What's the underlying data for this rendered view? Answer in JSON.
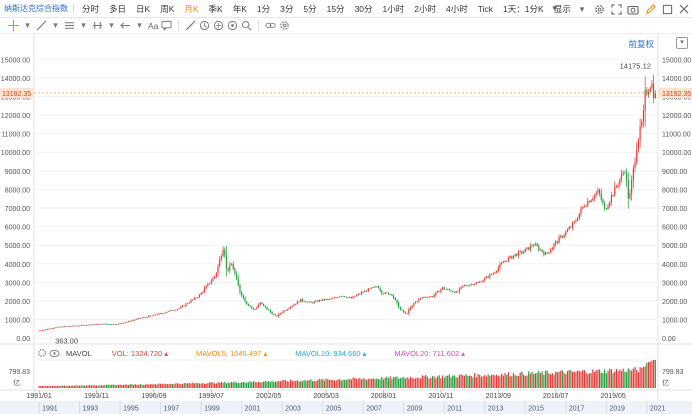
{
  "toolbar": {
    "title": "纳斯达克综合指数",
    "periods": [
      "分时",
      "多日",
      "日K",
      "周K",
      "月K",
      "季K",
      "年K",
      "1分",
      "3分",
      "5分",
      "15分",
      "30分",
      "1小时",
      "2小时",
      "4小时",
      "Tick",
      "1天：1分K"
    ],
    "active_period": "月K",
    "display_label": "显示",
    "icons": [
      "gear-icon",
      "fullscreen-icon",
      "camera-icon",
      "pencil-icon",
      "square-icon",
      "close-icon"
    ]
  },
  "drawing_toolbar": {
    "text_tool_label": "Aa",
    "icons": [
      "crosshair-icon",
      "trend-line-icon",
      "grid-icon",
      "measure-icon",
      "arrow-icon",
      "text-icon",
      "comment-icon",
      "ruler-icon",
      "circle-icon",
      "fork-icon",
      "shape-icon",
      "zoom-icon",
      "link-icon",
      "settings-icon"
    ]
  },
  "price_adjust_label": "前复权",
  "chart_data": {
    "type": "candlestick",
    "title": "纳斯达克综合指数",
    "interval": "月K",
    "y_ticks": [
      0,
      1000,
      2000,
      3000,
      4000,
      5000,
      6000,
      7000,
      8000,
      9000,
      10000,
      11000,
      12000,
      13000,
      14000,
      15000
    ],
    "y_tick_labels": [
      "0.00",
      "1000.00",
      "2000.00",
      "3000.00",
      "4000.00",
      "5000.00",
      "6000.00",
      "7000.00",
      "8000.00",
      "9000.00",
      "10000.00",
      "11000.00",
      "12000.00",
      "13000.00",
      "14000.00",
      "15000.00"
    ],
    "ylim": [
      -100,
      15500
    ],
    "current_price": 13192.35,
    "current_price_label": "13192.35",
    "max_label": "14175.12",
    "max_value": 14175.12,
    "min_label": "363.00",
    "min_value": 363.0,
    "x_date_labels": [
      "1991/01",
      "1993/11",
      "1996/09",
      "1999/07",
      "2002/05",
      "2005/03",
      "2008/01",
      "2010/11",
      "2013/09",
      "2016/07",
      "2019/05"
    ],
    "x_year_labels": [
      "1991",
      "1993",
      "1995",
      "1997",
      "1999",
      "2001",
      "2003",
      "2005",
      "2007",
      "2009",
      "2011",
      "2013",
      "2015",
      "2017",
      "2019",
      "2021"
    ],
    "anchors": [
      [
        1991.0,
        380
      ],
      [
        1992.0,
        600
      ],
      [
        1993.0,
        680
      ],
      [
        1994.0,
        760
      ],
      [
        1995.0,
        760
      ],
      [
        1996.0,
        1050
      ],
      [
        1997.0,
        1300
      ],
      [
        1998.0,
        1600
      ],
      [
        1999.0,
        2300
      ],
      [
        1999.8,
        3400
      ],
      [
        2000.2,
        5000
      ],
      [
        2000.35,
        3600
      ],
      [
        2000.6,
        4000
      ],
      [
        2001.0,
        2500
      ],
      [
        2001.3,
        1900
      ],
      [
        2001.7,
        1500
      ],
      [
        2002.0,
        1900
      ],
      [
        2002.5,
        1400
      ],
      [
        2002.8,
        1150
      ],
      [
        2003.0,
        1350
      ],
      [
        2003.5,
        1700
      ],
      [
        2004.0,
        2050
      ],
      [
        2004.5,
        1900
      ],
      [
        2005.0,
        2050
      ],
      [
        2005.5,
        2100
      ],
      [
        2006.0,
        2300
      ],
      [
        2006.5,
        2150
      ],
      [
        2007.0,
        2450
      ],
      [
        2007.8,
        2800
      ],
      [
        2008.0,
        2450
      ],
      [
        2008.5,
        2350
      ],
      [
        2008.9,
        1550
      ],
      [
        2009.2,
        1300
      ],
      [
        2009.6,
        1900
      ],
      [
        2010.0,
        2200
      ],
      [
        2010.5,
        2250
      ],
      [
        2011.0,
        2700
      ],
      [
        2011.7,
        2450
      ],
      [
        2012.0,
        2800
      ],
      [
        2012.8,
        3000
      ],
      [
        2013.5,
        3500
      ],
      [
        2014.0,
        4100
      ],
      [
        2014.6,
        4500
      ],
      [
        2015.0,
        4650
      ],
      [
        2015.5,
        5050
      ],
      [
        2016.1,
        4500
      ],
      [
        2016.6,
        5150
      ],
      [
        2017.0,
        5600
      ],
      [
        2017.5,
        6200
      ],
      [
        2018.0,
        7200
      ],
      [
        2018.7,
        7900
      ],
      [
        2019.0,
        6900
      ],
      [
        2019.5,
        8000
      ],
      [
        2020.0,
        9100
      ],
      [
        2020.2,
        7300
      ],
      [
        2020.6,
        10500
      ],
      [
        2020.9,
        11800
      ],
      [
        2021.0,
        13100
      ],
      [
        2021.3,
        13800
      ],
      [
        2021.42,
        13192
      ]
    ],
    "volume": {
      "legend_name": "MAVOL",
      "vol_label": "VOL: 1324.720",
      "ma5_label": "MAVOL5: 1045.497",
      "ma10_label": "MAVOL10: 934.660",
      "ma20_label": "MAVOL20: 711.602",
      "axis_value_label": "799.83",
      "axis_unit_label": "亿",
      "colors": {
        "vol": "#e53935",
        "ma5": "#f08c00",
        "ma10": "#2aa7c9",
        "ma20": "#d14fb4"
      }
    },
    "colors": {
      "up": "#e53935",
      "down": "#1e9e3a",
      "price_line": "#f0a050",
      "price_tag": "#ffe3d2"
    }
  }
}
